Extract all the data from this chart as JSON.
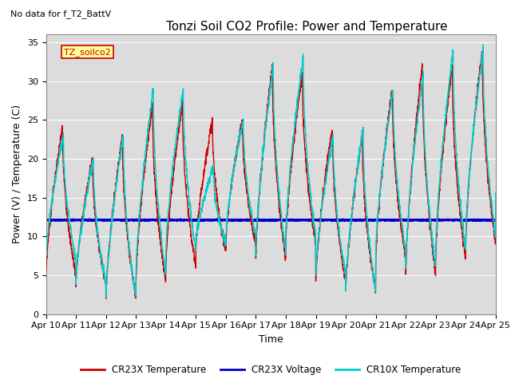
{
  "title": "Tonzi Soil CO2 Profile: Power and Temperature",
  "subtitle": "No data for f_T2_BattV",
  "xlabel": "Time",
  "ylabel": "Power (V) / Temperature (C)",
  "ylim": [
    0,
    36
  ],
  "yticks": [
    0,
    5,
    10,
    15,
    20,
    25,
    30,
    35
  ],
  "xlim": [
    0,
    15
  ],
  "xtick_labels": [
    "Apr 10",
    "Apr 11",
    "Apr 12",
    "Apr 13",
    "Apr 14",
    "Apr 15",
    "Apr 16",
    "Apr 17",
    "Apr 18",
    "Apr 19",
    "Apr 20",
    "Apr 21",
    "Apr 22",
    "Apr 23",
    "Apr 24",
    "Apr 25"
  ],
  "cr23x_temp_color": "#cc0000",
  "cr10x_temp_color": "#00cccc",
  "cr23x_volt_color": "#0000cc",
  "legend_box_color": "#ffff99",
  "legend_box_edge": "#cc0000",
  "annotation_label": "TZ_soilco2",
  "background_color": "#dcdcdc",
  "title_fontsize": 11,
  "axis_label_fontsize": 9,
  "tick_fontsize": 8,
  "volt_level": 12.1,
  "day_peaks_cr23x": [
    24,
    20,
    23,
    27,
    27,
    25,
    25,
    32,
    31,
    24,
    23,
    29,
    32,
    32,
    34,
    14
  ],
  "day_peaks_cr10x": [
    23,
    20,
    23,
    29,
    29,
    19,
    25,
    32,
    33,
    23,
    24,
    29,
    31,
    34,
    34,
    16
  ],
  "day_mins_cr23x": [
    5,
    4,
    2,
    4,
    6,
    8,
    9,
    7,
    9,
    4,
    3,
    7,
    5,
    7,
    9,
    14
  ],
  "day_mins_cr10x": [
    7,
    4,
    2,
    5,
    8,
    9,
    10,
    8,
    10,
    5,
    3,
    8,
    6,
    8,
    10,
    16
  ]
}
